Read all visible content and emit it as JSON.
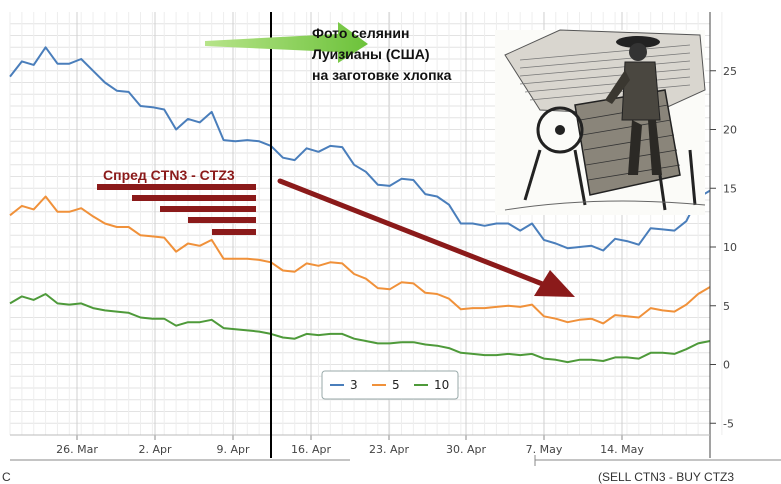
{
  "chart_data": {
    "type": "line",
    "x_labels": [
      "26. Mar",
      "2. Apr",
      "9. Apr",
      "16. Apr",
      "23. Apr",
      "30. Apr",
      "7. May",
      "14. May"
    ],
    "y_ticks": [
      25,
      20,
      15,
      10,
      5,
      0,
      -5
    ],
    "ylim": [
      -6,
      30
    ],
    "grid": true,
    "series": [
      {
        "name": "3",
        "color": "#4a7ebb",
        "values": [
          24.5,
          25.8,
          25.5,
          27.0,
          25.6,
          25.6,
          26.0,
          25.0,
          24.0,
          23.3,
          23.2,
          22.0,
          21.9,
          21.7,
          20.0,
          20.9,
          20.6,
          21.5,
          19.1,
          19.0,
          19.1,
          19.0,
          18.6,
          17.6,
          17.4,
          18.4,
          18.1,
          18.6,
          18.5,
          17.0,
          16.4,
          15.3,
          15.2,
          15.8,
          15.7,
          14.5,
          14.3,
          13.6,
          12.0,
          12.0,
          11.8,
          12.0,
          12.0,
          11.4,
          12.0,
          10.6,
          10.3,
          9.9,
          10.0,
          10.1,
          9.7,
          10.7,
          10.5,
          10.2,
          11.6,
          11.5,
          11.4,
          12.2,
          14.2,
          14.8
        ]
      },
      {
        "name": "5",
        "color": "#f0913a",
        "values": [
          12.7,
          13.5,
          13.2,
          14.3,
          13.0,
          13.0,
          13.3,
          12.6,
          12.0,
          11.7,
          11.7,
          11.0,
          10.9,
          10.8,
          9.6,
          10.3,
          10.1,
          10.6,
          9.0,
          9.0,
          9.0,
          8.9,
          8.7,
          8.0,
          7.9,
          8.6,
          8.4,
          8.7,
          8.6,
          7.7,
          7.3,
          6.5,
          6.4,
          7.0,
          6.9,
          6.1,
          6.0,
          5.6,
          4.7,
          4.8,
          4.8,
          4.9,
          5.0,
          4.9,
          5.1,
          4.1,
          3.9,
          3.6,
          3.8,
          3.9,
          3.5,
          4.2,
          4.1,
          4.0,
          4.8,
          4.6,
          4.5,
          5.1,
          6.0,
          6.6
        ]
      },
      {
        "name": "10",
        "color": "#4e9a3a",
        "values": [
          5.2,
          5.8,
          5.5,
          6.0,
          5.2,
          5.1,
          5.2,
          4.8,
          4.6,
          4.5,
          4.4,
          4.0,
          3.9,
          3.9,
          3.3,
          3.6,
          3.6,
          3.8,
          3.1,
          3.0,
          2.9,
          2.8,
          2.6,
          2.3,
          2.2,
          2.6,
          2.5,
          2.6,
          2.6,
          2.2,
          2.0,
          1.8,
          1.8,
          1.9,
          1.9,
          1.7,
          1.6,
          1.4,
          1.0,
          0.9,
          0.8,
          0.8,
          0.9,
          0.8,
          0.9,
          0.5,
          0.4,
          0.2,
          0.4,
          0.4,
          0.3,
          0.6,
          0.6,
          0.5,
          1.0,
          1.0,
          0.9,
          1.3,
          1.8,
          2.0
        ]
      }
    ]
  },
  "annotations": {
    "photo_caption": [
      "Фото селянин",
      "Луизианы (США)",
      "на заготовке хлопка"
    ],
    "spread_label": "Спред CTN3 - CTZ3"
  },
  "colors": {
    "spread_bars": "#8b1a1a",
    "trend_arrow": "#8b1a1a",
    "green_arrow": "#8fd14f"
  },
  "bottom_text": {
    "left": "С",
    "right": "(SELL CTN3 - BUY CTZ3"
  }
}
